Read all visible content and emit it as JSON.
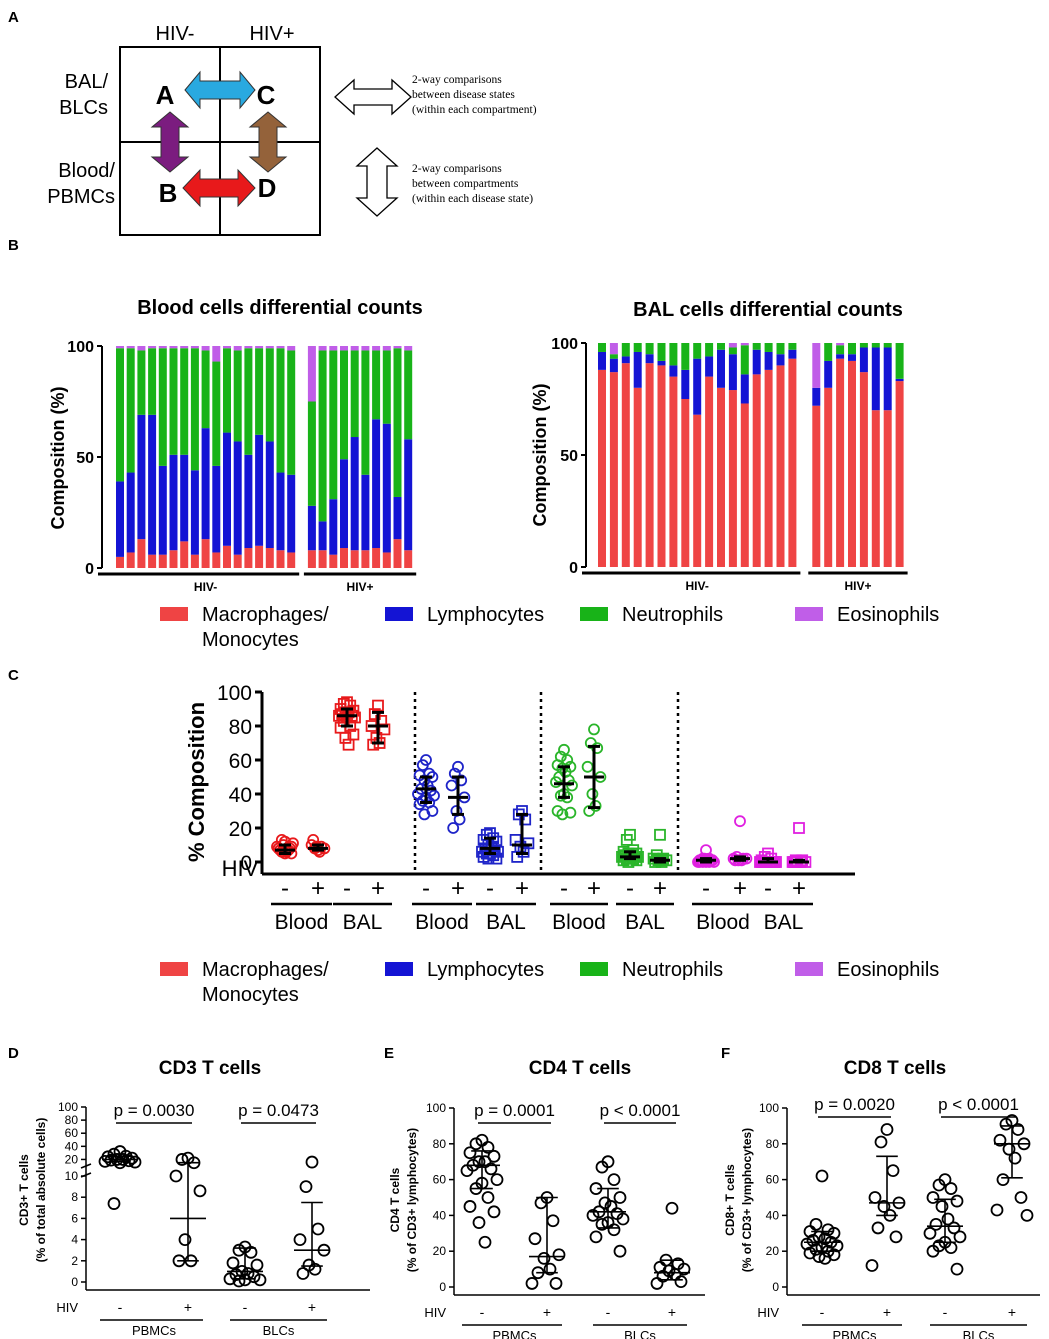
{
  "panels": {
    "a": "A",
    "b": "B",
    "c": "C",
    "d": "D",
    "e": "E",
    "f": "F"
  },
  "panelA": {
    "col_neg": "HIV-",
    "col_pos": "HIV+",
    "row_bal": [
      "BAL/",
      "BLCs"
    ],
    "row_blood": [
      "Blood/",
      "PBMCs"
    ],
    "letters": {
      "a": "A",
      "b": "B",
      "c": "C",
      "d": "D"
    },
    "note1": [
      "2-way comparisons",
      "between disease states",
      "(within each compartment)"
    ],
    "note2": [
      "2-way comparisons",
      "between compartments",
      "(within each disease state)"
    ],
    "colors": {
      "blue": "#29a9e0",
      "purple": "#7b1c7f",
      "brown": "#94623a",
      "red": "#e8191b"
    }
  },
  "legend": {
    "items": [
      {
        "label": [
          "Macrophages/",
          "Monocytes"
        ],
        "color": "#ef4444"
      },
      {
        "label": [
          "Lymphocytes"
        ],
        "color": "#1414d4"
      },
      {
        "label": [
          "Neutrophils"
        ],
        "color": "#18b318"
      },
      {
        "label": [
          "Eosinophils"
        ],
        "color": "#c05ee8"
      }
    ]
  },
  "chart_data": [
    {
      "id": "B-blood",
      "type": "bar",
      "stacked": true,
      "title": "Blood cells differential counts",
      "ylabel": "Composition (%)",
      "ylim": [
        0,
        100
      ],
      "yticks": [
        0,
        50,
        100
      ],
      "groups": [
        {
          "label": "HIV-",
          "n": 17
        },
        {
          "label": "HIV+",
          "n": 10
        }
      ],
      "series_names": [
        "Macrophages/Monocytes",
        "Lymphocytes",
        "Neutrophils",
        "Eosinophils"
      ],
      "bars": [
        [
          5,
          34,
          60,
          1
        ],
        [
          7,
          36,
          56,
          1
        ],
        [
          13,
          56,
          29,
          2
        ],
        [
          6,
          63,
          30,
          1
        ],
        [
          6,
          40,
          53,
          1
        ],
        [
          8,
          43,
          48,
          1
        ],
        [
          12,
          39,
          48,
          1
        ],
        [
          6,
          38,
          55,
          1
        ],
        [
          13,
          50,
          35,
          2
        ],
        [
          7,
          39,
          47,
          7
        ],
        [
          10,
          51,
          38,
          1
        ],
        [
          6,
          51,
          41,
          2
        ],
        [
          9,
          42,
          48,
          1
        ],
        [
          10,
          50,
          39,
          1
        ],
        [
          9,
          48,
          42,
          1
        ],
        [
          8,
          35,
          56,
          1
        ],
        [
          7,
          35,
          56,
          2
        ],
        [
          8,
          20,
          47,
          25
        ],
        [
          8,
          13,
          77,
          2
        ],
        [
          6,
          25,
          67,
          2
        ],
        [
          9,
          40,
          49,
          2
        ],
        [
          8,
          51,
          39,
          2
        ],
        [
          8,
          34,
          56,
          2
        ],
        [
          9,
          58,
          31,
          2
        ],
        [
          7,
          58,
          33,
          2
        ],
        [
          13,
          19,
          67,
          1
        ],
        [
          8,
          50,
          40,
          2
        ]
      ]
    },
    {
      "id": "B-bal",
      "type": "bar",
      "stacked": true,
      "title": "BAL cells differential counts",
      "ylabel": "Composition (%)",
      "ylim": [
        0,
        100
      ],
      "yticks": [
        0,
        50,
        100
      ],
      "groups": [
        {
          "label": "HIV-",
          "n": 17
        },
        {
          "label": "HIV+",
          "n": 8
        }
      ],
      "series_names": [
        "Macrophages/Monocytes",
        "Lymphocytes",
        "Neutrophils",
        "Eosinophils"
      ],
      "bars": [
        [
          88,
          8,
          4,
          0
        ],
        [
          87,
          6,
          2,
          5
        ],
        [
          91,
          3,
          6,
          0
        ],
        [
          80,
          16,
          4,
          0
        ],
        [
          91,
          4,
          5,
          0
        ],
        [
          90,
          2,
          8,
          0
        ],
        [
          85,
          5,
          10,
          0
        ],
        [
          75,
          13,
          12,
          0
        ],
        [
          68,
          25,
          7,
          0
        ],
        [
          85,
          9,
          6,
          0
        ],
        [
          80,
          17,
          3,
          0
        ],
        [
          79,
          16,
          3,
          2
        ],
        [
          73,
          13,
          13,
          1
        ],
        [
          86,
          11,
          3,
          0
        ],
        [
          88,
          8,
          4,
          0
        ],
        [
          90,
          5,
          5,
          0
        ],
        [
          93,
          4,
          3,
          0
        ],
        [
          72,
          8,
          0,
          20
        ],
        [
          80,
          12,
          8,
          0
        ],
        [
          93,
          2,
          4,
          1
        ],
        [
          92,
          3,
          5,
          0
        ],
        [
          87,
          11,
          2,
          0
        ],
        [
          70,
          28,
          2,
          0
        ],
        [
          70,
          28,
          2,
          0
        ],
        [
          83,
          1,
          16,
          0
        ]
      ]
    },
    {
      "id": "C",
      "type": "scatter",
      "ylabel": "% Composition",
      "ylim": [
        0,
        100
      ],
      "yticks": [
        0,
        20,
        40,
        60,
        80,
        100
      ],
      "x_marker_label": "HIV",
      "signs": [
        "-",
        "+",
        "-",
        "+"
      ],
      "compartments": [
        "Blood",
        "BAL"
      ],
      "groups": [
        {
          "cell": "Macrophages/Monocytes",
          "color": "#e8191b",
          "sets": [
            {
              "shape": "circle",
              "median": 7,
              "q1": 5,
              "q3": 10,
              "values": [
                5,
                6,
                7,
                8,
                9,
                10,
                6,
                7,
                8,
                9,
                11,
                12,
                13,
                7,
                8,
                5
              ]
            },
            {
              "shape": "circle",
              "median": 8,
              "q1": 7,
              "q3": 10,
              "values": [
                7,
                8,
                9,
                10,
                8,
                9,
                6,
                13
              ]
            },
            {
              "shape": "square",
              "median": 86,
              "q1": 80,
              "q3": 90,
              "values": [
                94,
                93,
                92,
                90,
                89,
                88,
                88,
                87,
                86,
                86,
                85,
                85,
                83,
                80,
                79,
                75,
                73,
                69
              ]
            },
            {
              "shape": "square",
              "median": 80,
              "q1": 70,
              "q3": 88,
              "values": [
                92,
                87,
                83,
                80,
                78,
                73,
                70,
                69
              ]
            }
          ]
        },
        {
          "cell": "Lymphocytes",
          "color": "#1e24c8",
          "sets": [
            {
              "shape": "circle",
              "median": 43,
              "q1": 35,
              "q3": 50,
              "values": [
                60,
                57,
                52,
                51,
                50,
                48,
                45,
                43,
                42,
                40,
                39,
                38,
                36,
                35,
                34,
                30,
                28
              ]
            },
            {
              "shape": "circle",
              "median": 38,
              "q1": 28,
              "q3": 50,
              "values": [
                56,
                52,
                48,
                45,
                38,
                30,
                25,
                20
              ]
            },
            {
              "shape": "square",
              "median": 8,
              "q1": 5,
              "q3": 14,
              "values": [
                17,
                16,
                14,
                13,
                12,
                10,
                9,
                8,
                7,
                6,
                6,
                5,
                5,
                4,
                3,
                2,
                2
              ]
            },
            {
              "shape": "square",
              "median": 10,
              "q1": 5,
              "q3": 28,
              "values": [
                30,
                28,
                25,
                13,
                11,
                9,
                6,
                3
              ]
            }
          ]
        },
        {
          "cell": "Neutrophils",
          "color": "#2ab52a",
          "sets": [
            {
              "shape": "circle",
              "median": 46,
              "q1": 38,
              "q3": 56,
              "values": [
                66,
                62,
                60,
                57,
                56,
                55,
                53,
                50,
                48,
                47,
                45,
                40,
                39,
                38,
                30,
                29,
                28
              ]
            },
            {
              "shape": "circle",
              "median": 50,
              "q1": 32,
              "q3": 68,
              "values": [
                78,
                70,
                67,
                56,
                50,
                40,
                33,
                30
              ]
            },
            {
              "shape": "square",
              "median": 3,
              "q1": 2,
              "q3": 6,
              "values": [
                16,
                13,
                7,
                6,
                5,
                5,
                4,
                4,
                3,
                3,
                3,
                2,
                2,
                2,
                1,
                1,
                0
              ]
            },
            {
              "shape": "square",
              "median": 1,
              "q1": 0,
              "q3": 2,
              "values": [
                16,
                4,
                2,
                2,
                1,
                1,
                0,
                0
              ]
            }
          ]
        },
        {
          "cell": "Eosinophils",
          "color": "#e020e0",
          "sets": [
            {
              "shape": "circle",
              "median": 1,
              "q1": 0,
              "q3": 2,
              "values": [
                7,
                2,
                2,
                1,
                1,
                1,
                1,
                1,
                1,
                0,
                0,
                0,
                0,
                0,
                0,
                1,
                2
              ]
            },
            {
              "shape": "circle",
              "median": 2,
              "q1": 1,
              "q3": 3,
              "values": [
                24,
                3,
                2,
                2,
                2,
                1,
                1,
                1
              ]
            },
            {
              "shape": "square",
              "median": 0,
              "q1": 0,
              "q3": 2,
              "values": [
                5,
                3,
                2,
                1,
                0,
                0,
                0,
                0,
                0,
                0,
                0,
                0,
                0,
                0,
                0,
                0,
                0
              ]
            },
            {
              "shape": "square",
              "median": 0,
              "q1": 0,
              "q3": 1,
              "values": [
                20,
                1,
                1,
                0,
                0,
                0,
                0,
                0
              ]
            }
          ]
        }
      ]
    },
    {
      "id": "D",
      "type": "scatter",
      "title": "CD3 T cells",
      "ylabel": [
        "CD3+ T cells",
        "(% of total absolute cells)"
      ],
      "broken_axis": true,
      "ytick_lower": [
        0,
        2,
        4,
        6,
        8,
        10
      ],
      "ytick_upper": [
        20,
        40,
        60,
        80,
        100
      ],
      "x_marker_label": "HIV",
      "signs": [
        "-",
        "+",
        "-",
        "+"
      ],
      "compartments": [
        "PBMCs",
        "BLCs"
      ],
      "pvalues": [
        "p = 0.0030",
        "p = 0.0473"
      ],
      "sets": [
        {
          "median": 20,
          "q1": 17,
          "q3": 25,
          "values": [
            32,
            28,
            25,
            24,
            22,
            20,
            20,
            19,
            18,
            17,
            16,
            15,
            7.4
          ]
        },
        {
          "median": 6,
          "q1": 2,
          "q3": 15,
          "values": [
            22,
            20,
            15,
            10,
            8.6,
            4,
            2,
            2
          ]
        },
        {
          "median": 1,
          "q1": 0.3,
          "q3": 3.2,
          "values": [
            3.3,
            3.0,
            2.8,
            1.8,
            1.6,
            1.0,
            0.8,
            0.7,
            0.5,
            0.3,
            0.2,
            0.2,
            0.1
          ]
        },
        {
          "median": 3,
          "q1": 1.5,
          "q3": 7.5,
          "values": [
            16,
            9,
            5,
            4,
            3,
            1.6,
            1.2,
            0.8
          ]
        }
      ]
    },
    {
      "id": "E",
      "type": "scatter",
      "title": "CD4 T cells",
      "ylabel": [
        "CD4 T cells",
        "(% of CD3+ lymphocytes)"
      ],
      "ylim": [
        0,
        100
      ],
      "yticks": [
        0,
        20,
        40,
        60,
        80,
        100
      ],
      "x_marker_label": "HIV",
      "signs": [
        "-",
        "+",
        "-",
        "+"
      ],
      "compartments": [
        "PBMCs",
        "BLCs"
      ],
      "pvalues": [
        "p = 0.0001",
        "p < 0.0001"
      ],
      "sets": [
        {
          "median": 68,
          "q1": 55,
          "q3": 76,
          "values": [
            82,
            80,
            78,
            75,
            73,
            70,
            70,
            68,
            66,
            65,
            60,
            58,
            55,
            50,
            45,
            42,
            36,
            25
          ]
        },
        {
          "median": 17,
          "q1": 8,
          "q3": 50,
          "values": [
            50,
            47,
            37,
            27,
            18,
            16,
            10,
            8,
            2,
            2
          ]
        },
        {
          "median": 42,
          "q1": 33,
          "q3": 55,
          "values": [
            70,
            67,
            60,
            55,
            50,
            47,
            45,
            42,
            41,
            40,
            38,
            36,
            35,
            32,
            28,
            20
          ]
        },
        {
          "median": 8,
          "q1": 4,
          "q3": 15,
          "values": [
            44,
            15,
            13,
            11,
            10,
            9,
            7,
            6,
            3,
            2
          ]
        }
      ]
    },
    {
      "id": "F",
      "type": "scatter",
      "title": "CD8 T cells",
      "ylabel": [
        "CD8+ T cells",
        "(% of CD3+ lymphocytes)"
      ],
      "ylim": [
        0,
        100
      ],
      "yticks": [
        0,
        20,
        40,
        60,
        80,
        100
      ],
      "x_marker_label": "HIV",
      "signs": [
        "-",
        "+",
        "-",
        "+"
      ],
      "compartments": [
        "PBMCs",
        "BLCs"
      ],
      "pvalues": [
        "p = 0.0020",
        "p < 0.0001"
      ],
      "sets": [
        {
          "median": 25,
          "q1": 20,
          "q3": 31,
          "values": [
            62,
            35,
            32,
            31,
            30,
            28,
            27,
            26,
            25,
            24,
            23,
            22,
            21,
            20,
            19,
            18,
            17,
            16
          ]
        },
        {
          "median": 47,
          "q1": 40,
          "q3": 73,
          "values": [
            88,
            81,
            65,
            50,
            47,
            45,
            40,
            33,
            28,
            12
          ]
        },
        {
          "median": 34,
          "q1": 25,
          "q3": 49,
          "values": [
            60,
            57,
            55,
            50,
            48,
            45,
            38,
            35,
            33,
            30,
            28,
            25,
            23,
            22,
            20,
            10
          ]
        },
        {
          "median": 80,
          "q1": 61,
          "q3": 90,
          "values": [
            93,
            91,
            88,
            82,
            80,
            77,
            72,
            60,
            50,
            43,
            40
          ]
        }
      ]
    }
  ]
}
